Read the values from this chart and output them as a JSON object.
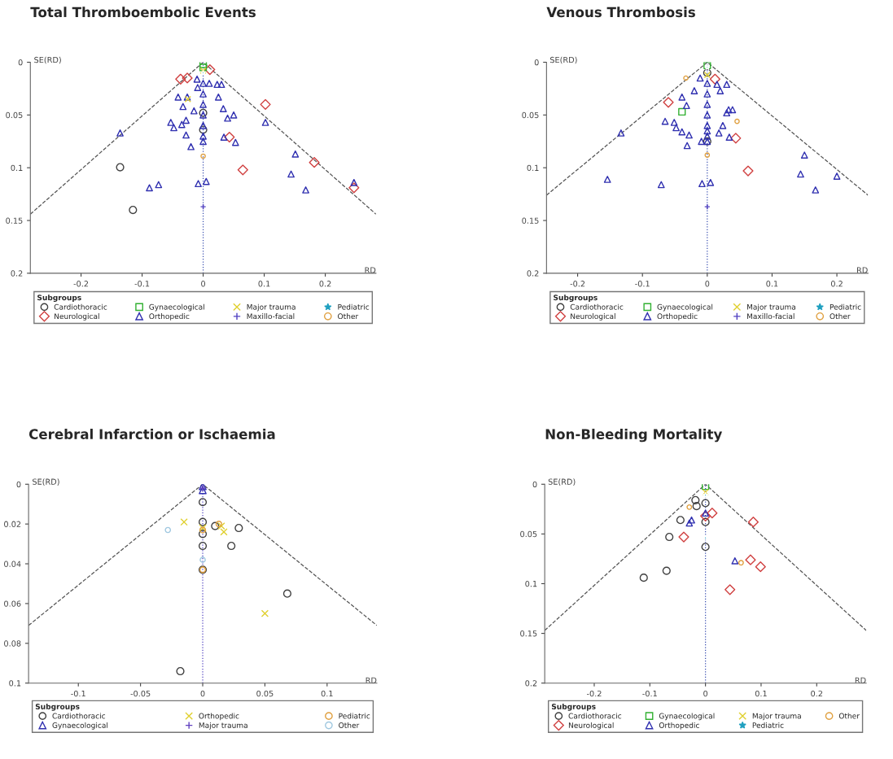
{
  "chart_data": [
    {
      "type": "scatter",
      "title": "Total Thromboembolic Events",
      "xlabel": "RD",
      "ylabel": "SE(RD)",
      "legend_title": "Subgroups",
      "legend": "bottom",
      "grid": false,
      "xlim": [
        -0.283,
        0.283
      ],
      "ylim": [
        0.2,
        0
      ],
      "xticks": [
        -0.2,
        -0.1,
        0,
        0.1,
        0.2
      ],
      "yticks": [
        0,
        0.05,
        0.1,
        0.15,
        0.2
      ],
      "ref_lines": [
        {
          "axis": "x",
          "value": 0,
          "color": "#3a4fb0",
          "line_style": "dotted"
        }
      ],
      "series": [
        {
          "type": "line",
          "color": "#555555",
          "line_style": "dashed",
          "marker": "none",
          "x": [
            -0.283,
            0,
            0.283
          ],
          "values": [
            0.144,
            0,
            0.144
          ]
        },
        {
          "name": "Cardiothoracic",
          "marker": "circle",
          "color": "#404040",
          "x": [
            -0.136,
            -0.115,
            0,
            0
          ],
          "values": [
            0.0995,
            0.14,
            0.048,
            0.064
          ]
        },
        {
          "name": "Neurological",
          "type": "scatter",
          "marker": "diamond",
          "color": "#d04040",
          "x": [
            -0.037,
            -0.026,
            0.102,
            0.065,
            0.043,
            0.011,
            0.182,
            0.247
          ],
          "values": [
            0.016,
            0.015,
            0.04,
            0.102,
            0.071,
            0.007,
            0.095,
            0.119
          ]
        },
        {
          "name": "Gynaecological",
          "type": "scatter",
          "marker": "square",
          "color": "#30b030",
          "x": [
            0,
            0
          ],
          "values": [
            0.002,
            0.005
          ]
        },
        {
          "name": "Orthopedic",
          "type": "scatter",
          "marker": "triangle",
          "color": "#3030b0",
          "x": [
            -0.136,
            -0.041,
            -0.026,
            -0.033,
            -0.015,
            -0.053,
            -0.048,
            -0.035,
            -0.028,
            -0.028,
            -0.02,
            -0.01,
            -0.009,
            0.01,
            0.023,
            0.03,
            0.025,
            0.033,
            0.04,
            0.05,
            0.034,
            0.053,
            0.102,
            -0.088,
            -0.073,
            -0.008,
            0.005,
            0.151,
            0.144,
            0.168,
            0.247,
            0,
            0,
            0,
            0,
            0,
            0,
            0
          ],
          "values": [
            0.067,
            0.033,
            0.033,
            0.042,
            0.046,
            0.057,
            0.062,
            0.059,
            0.055,
            0.069,
            0.08,
            0.016,
            0.024,
            0.02,
            0.021,
            0.021,
            0.033,
            0.044,
            0.053,
            0.05,
            0.071,
            0.076,
            0.057,
            0.119,
            0.116,
            0.115,
            0.113,
            0.087,
            0.106,
            0.121,
            0.114,
            0.02,
            0.03,
            0.04,
            0.05,
            0.06,
            0.07,
            0.075
          ]
        },
        {
          "name": "Major trauma",
          "type": "scatter",
          "marker": "x",
          "color": "#e0d030",
          "x": [
            -0.025,
            0
          ],
          "values": [
            0.035,
            0.008
          ]
        },
        {
          "name": "Maxillo-facial",
          "type": "scatter",
          "marker": "cross",
          "color": "#5040c0",
          "x": [
            0
          ],
          "values": [
            0.137
          ]
        },
        {
          "name": "Pediatric",
          "type": "scatter",
          "marker": "star",
          "color": "#20a0c0",
          "x": [
            0
          ],
          "values": [
            0.01
          ]
        },
        {
          "name": "Other",
          "type": "scatter",
          "marker": "circle",
          "color": "#e0a040",
          "x": [
            0
          ],
          "values": [
            0.089
          ]
        }
      ]
    },
    {
      "type": "scatter",
      "title": "Venous Thrombosis",
      "xlabel": "RD",
      "ylabel": "SE(RD)",
      "legend_title": "Subgroups",
      "legend": "bottom",
      "grid": false,
      "xlim": [
        -0.248,
        0.248
      ],
      "ylim": [
        0.2,
        0
      ],
      "xticks": [
        -0.2,
        -0.1,
        0,
        0.1,
        0.2
      ],
      "yticks": [
        0,
        0.05,
        0.1,
        0.15,
        0.2
      ],
      "ref_lines": [
        {
          "axis": "x",
          "value": 0,
          "color": "#3a4fb0",
          "line_style": "dotted"
        }
      ],
      "series": [
        {
          "type": "line",
          "color": "#555555",
          "line_style": "dashed",
          "marker": "none",
          "x": [
            -0.248,
            0,
            0.248
          ],
          "values": [
            0.126,
            0,
            0.126
          ]
        },
        {
          "name": "Cardiothoracic",
          "marker": "circle",
          "color": "#404040",
          "x": [
            0,
            0
          ],
          "values": [
            0.01,
            0.075
          ]
        },
        {
          "name": "Neurological",
          "type": "scatter",
          "marker": "diamond",
          "color": "#d04040",
          "x": [
            -0.06,
            0.044,
            0.063,
            0.012
          ],
          "values": [
            0.038,
            0.072,
            0.103,
            0.016
          ]
        },
        {
          "name": "Gynaecological",
          "type": "scatter",
          "marker": "square",
          "color": "#30b030",
          "x": [
            -0.039,
            0
          ],
          "values": [
            0.047,
            0.003
          ]
        },
        {
          "name": "Orthopedic",
          "type": "scatter",
          "marker": "triangle",
          "color": "#3030b0",
          "x": [
            -0.133,
            -0.154,
            -0.071,
            -0.008,
            0.005,
            0.15,
            0.144,
            0.2,
            0.167,
            -0.039,
            -0.032,
            -0.02,
            -0.011,
            -0.065,
            -0.051,
            -0.048,
            -0.039,
            -0.028,
            -0.031,
            -0.009,
            0.018,
            0.024,
            0.033,
            0.039,
            0.03,
            0.034,
            0.02,
            0.03,
            0.015,
            0,
            0,
            0,
            0,
            0,
            0,
            0,
            0
          ],
          "values": [
            0.067,
            0.111,
            0.116,
            0.115,
            0.114,
            0.088,
            0.106,
            0.108,
            0.121,
            0.033,
            0.041,
            0.027,
            0.015,
            0.056,
            0.057,
            0.062,
            0.066,
            0.069,
            0.079,
            0.075,
            0.067,
            0.06,
            0.045,
            0.045,
            0.048,
            0.071,
            0.027,
            0.021,
            0.021,
            0.02,
            0.03,
            0.04,
            0.05,
            0.06,
            0.065,
            0.07,
            0.075
          ]
        },
        {
          "name": "Major trauma",
          "type": "scatter",
          "marker": "x",
          "color": "#e0d030",
          "x": [
            0
          ],
          "values": [
            0.012
          ]
        },
        {
          "name": "Maxillo-facial",
          "type": "scatter",
          "marker": "cross",
          "color": "#5040c0",
          "x": [
            0
          ],
          "values": [
            0.137
          ]
        },
        {
          "name": "Pediatric",
          "type": "scatter",
          "marker": "star",
          "color": "#20a0c0",
          "x": [
            0
          ],
          "values": [
            0.005
          ]
        },
        {
          "name": "Other",
          "type": "scatter",
          "marker": "circle",
          "color": "#e0a040",
          "x": [
            -0.033,
            0.046,
            0
          ],
          "values": [
            0.015,
            0.056,
            0.088
          ]
        }
      ]
    },
    {
      "type": "scatter",
      "title": "Cerebral Infarction or Ischaemia",
      "xlabel": "RD",
      "ylabel": "SE(RD)",
      "legend_title": "Subgroups",
      "legend": "bottom",
      "grid": false,
      "xlim": [
        -0.14,
        0.14
      ],
      "ylim": [
        0.1,
        0
      ],
      "xticks": [
        -0.1,
        -0.05,
        0,
        0.05,
        0.1
      ],
      "yticks": [
        0,
        0.02,
        0.04,
        0.06,
        0.08,
        0.1
      ],
      "ref_lines": [
        {
          "axis": "x",
          "value": 0,
          "color": "#5040c0",
          "line_style": "dotted"
        }
      ],
      "series": [
        {
          "type": "line",
          "color": "#555555",
          "line_style": "dashed",
          "marker": "none",
          "x": [
            -0.14,
            0,
            0.14
          ],
          "values": [
            0.071,
            0,
            0.071
          ]
        },
        {
          "name": "Cardiothoracic",
          "marker": "circle",
          "color": "#404040",
          "x": [
            0,
            0,
            0.01,
            0.029,
            0.023,
            0,
            0,
            0,
            0.068,
            -0.018
          ],
          "values": [
            0.009,
            0.019,
            0.021,
            0.022,
            0.031,
            0.025,
            0.031,
            0.043,
            0.055,
            0.094
          ]
        },
        {
          "name": "Gynaecological",
          "type": "scatter",
          "marker": "triangle",
          "color": "#3030b0",
          "x": [
            0,
            0
          ],
          "values": [
            0.001,
            0.003
          ]
        },
        {
          "name": "Orthopedic",
          "type": "scatter",
          "marker": "x",
          "color": "#e0d030",
          "x": [
            -0.015,
            0.015,
            0.017,
            0.05,
            0
          ],
          "values": [
            0.019,
            0.021,
            0.024,
            0.065,
            0.022
          ]
        },
        {
          "name": "Major trauma",
          "type": "scatter",
          "marker": "cross",
          "color": "#6040c0",
          "x": [
            0
          ],
          "values": [
            0.002
          ]
        },
        {
          "name": "Pediatric",
          "type": "scatter",
          "marker": "circle",
          "color": "#e0a040",
          "x": [
            0,
            0,
            0.013
          ],
          "values": [
            0.023,
            0.043,
            0.02
          ]
        },
        {
          "name": "Other",
          "type": "scatter",
          "marker": "circle",
          "color": "#a0c8e0",
          "x": [
            -0.028,
            0
          ],
          "values": [
            0.023,
            0.038
          ]
        }
      ]
    },
    {
      "type": "scatter",
      "title": "Non-Bleeding Mortality",
      "xlabel": "RD",
      "ylabel": "SE(RD)",
      "legend_title": "Subgroups",
      "legend": "bottom",
      "grid": false,
      "xlim": [
        -0.289,
        0.289
      ],
      "ylim": [
        0.2,
        0
      ],
      "xticks": [
        -0.2,
        -0.1,
        0,
        0.1,
        0.2
      ],
      "yticks": [
        0,
        0.05,
        0.1,
        0.15,
        0.2
      ],
      "ref_lines": [
        {
          "axis": "x",
          "value": 0,
          "color": "#3a4fb0",
          "line_style": "dotted"
        }
      ],
      "series": [
        {
          "type": "line",
          "color": "#555555",
          "line_style": "dashed",
          "marker": "none",
          "x": [
            -0.289,
            0,
            0.289
          ],
          "values": [
            0.147,
            0,
            0.147
          ]
        },
        {
          "name": "Cardiothoracic",
          "marker": "circle",
          "color": "#404040",
          "x": [
            -0.018,
            -0.016,
            -0.045,
            -0.065,
            -0.07,
            -0.111,
            0,
            0,
            0
          ],
          "values": [
            0.016,
            0.022,
            0.036,
            0.053,
            0.087,
            0.094,
            0.063,
            0.038,
            0.019
          ]
        },
        {
          "name": "Neurological",
          "type": "scatter",
          "marker": "diamond",
          "color": "#d04040",
          "x": [
            0.012,
            0.086,
            -0.039,
            0.081,
            0.099,
            0.044,
            0
          ],
          "values": [
            0.029,
            0.038,
            0.053,
            0.076,
            0.083,
            0.106,
            0.032
          ]
        },
        {
          "name": "Gynaecological",
          "type": "scatter",
          "marker": "square",
          "color": "#30b030",
          "x": [
            0
          ],
          "values": [
            0.002
          ]
        },
        {
          "name": "Orthopedic",
          "type": "scatter",
          "marker": "triangle",
          "color": "#3030b0",
          "x": [
            -0.025,
            -0.029,
            0.053,
            0
          ],
          "values": [
            0.036,
            0.039,
            0.077,
            0.029
          ]
        },
        {
          "name": "Major trauma",
          "type": "scatter",
          "marker": "x",
          "color": "#e0d030",
          "x": [
            0
          ],
          "values": [
            0.008
          ]
        },
        {
          "name": "Pediatric",
          "type": "scatter",
          "marker": "star",
          "color": "#20a0c0",
          "x": [
            0,
            0
          ],
          "values": [
            0.054,
            0.011
          ]
        },
        {
          "name": "Other",
          "type": "scatter",
          "marker": "circle",
          "color": "#e0a040",
          "x": [
            -0.029,
            0.064
          ],
          "values": [
            0.023,
            0.079
          ]
        }
      ]
    }
  ]
}
